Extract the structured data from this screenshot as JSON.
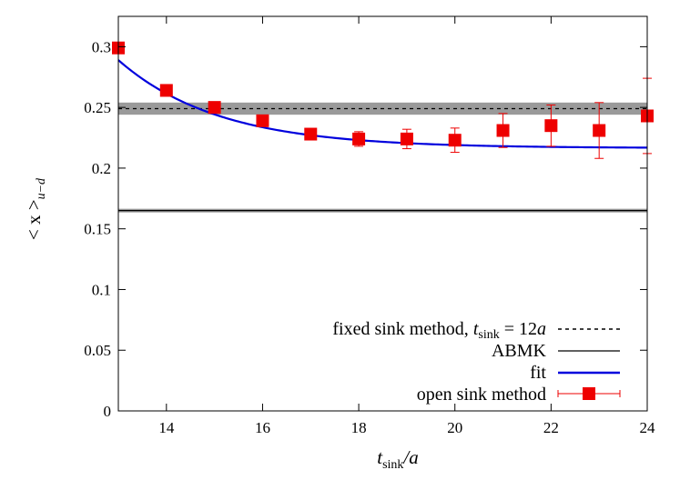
{
  "chart_data": {
    "type": "scatter",
    "xlabel": {
      "main": "t",
      "sub": "sink",
      "tail": "/a"
    },
    "ylabel": {
      "main": "< x >",
      "sub": "u−d"
    },
    "xlim": [
      13,
      24
    ],
    "ylim": [
      0,
      0.325
    ],
    "xticks": [
      14,
      16,
      18,
      20,
      22,
      24
    ],
    "yticks": [
      0,
      0.05,
      0.1,
      0.15,
      0.2,
      0.25,
      0.3
    ],
    "grid": false,
    "legend_position": "bottom-right",
    "colors": {
      "points": "#ee0000",
      "fit": "#0000dd",
      "band": "#9a9a9a",
      "ref": "#000000"
    },
    "series": [
      {
        "name": "open sink method",
        "kind": "points",
        "x": [
          13,
          14,
          15,
          16,
          17,
          18,
          19,
          20,
          21,
          22,
          23,
          24
        ],
        "y": [
          0.299,
          0.264,
          0.25,
          0.239,
          0.228,
          0.224,
          0.224,
          0.223,
          0.231,
          0.235,
          0.231,
          0.243
        ],
        "err": [
          0.003,
          0.003,
          0.003,
          0.004,
          0.004,
          0.006,
          0.008,
          0.01,
          0.014,
          0.017,
          0.023,
          0.031
        ]
      },
      {
        "name": "fit",
        "kind": "curve",
        "form": "c + A*exp(-m*(x-13))",
        "params": {
          "c": 0.2165,
          "A": 0.0725,
          "m": 0.48
        }
      },
      {
        "name": "ABMK",
        "kind": "hline",
        "y": 0.165,
        "band": [
          0.1635,
          0.1665
        ]
      }
    ],
    "fixed_sink": {
      "label_prefix": "fixed sink method, ",
      "label_var": "t",
      "label_sub": "sink",
      "label_eq": " = 12",
      "label_unit": "a",
      "kind": "hline",
      "y": 0.249,
      "band": [
        0.244,
        0.254
      ]
    }
  }
}
